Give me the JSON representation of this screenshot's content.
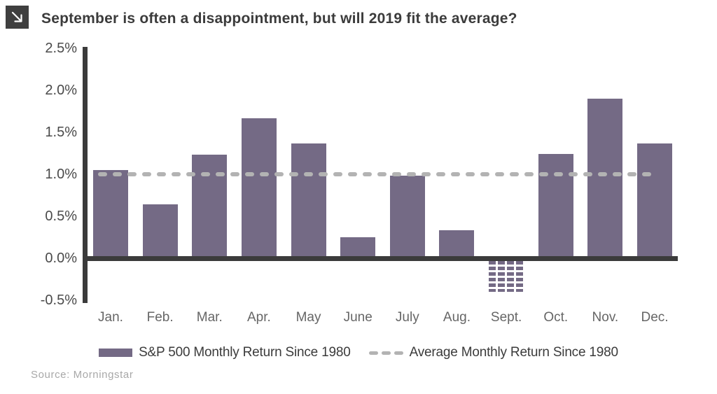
{
  "header": {
    "icon": "arrow-down-right",
    "title": "September is often a disappointment, but will 2019 fit the average?"
  },
  "chart_data": {
    "type": "bar",
    "title": "September is often a disappointment, but will 2019 fit the average?",
    "categories": [
      "Jan.",
      "Feb.",
      "Mar.",
      "Apr.",
      "May",
      "June",
      "July",
      "Aug.",
      "Sept.",
      "Oct.",
      "Nov.",
      "Dec."
    ],
    "values": [
      1.05,
      0.64,
      1.23,
      1.67,
      1.37,
      0.25,
      0.98,
      0.33,
      -0.4,
      1.24,
      1.9,
      1.37
    ],
    "series": [
      {
        "name": "S&P 500 Monthly Return Since 1980",
        "type": "bar"
      },
      {
        "name": "Average Monthly Return Since 1980",
        "type": "dashed-line",
        "value": 1.0
      }
    ],
    "average_line_value": 1.0,
    "xlabel": "",
    "ylabel": "",
    "ylim": [
      -0.5,
      2.5
    ],
    "yticks": [
      {
        "label": "2.5%",
        "value": 2.5
      },
      {
        "label": "2.0%",
        "value": 2.0
      },
      {
        "label": "1.5%",
        "value": 1.5
      },
      {
        "label": "1.0%",
        "value": 1.0
      },
      {
        "label": "0.5%",
        "value": 0.5
      },
      {
        "label": "0.0%",
        "value": 0.0
      },
      {
        "label": "-0.5%",
        "value": -0.5
      }
    ],
    "grid": false,
    "legend_position": "bottom",
    "bar_color": "#746a85",
    "average_line_color": "#b3b3b3",
    "axis_color": "#3b3b3b",
    "hatched_category": "Sept."
  },
  "legend": {
    "bars_label": "S&P 500 Monthly Return Since 1980",
    "average_label": "Average Monthly Return Since 1980"
  },
  "footer": {
    "source": "Source: Morningstar"
  }
}
